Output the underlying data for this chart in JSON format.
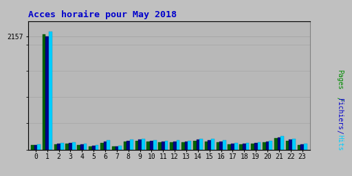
{
  "title": "Acces horaire pour May 2018",
  "hours": [
    0,
    1,
    2,
    3,
    4,
    5,
    6,
    7,
    8,
    9,
    10,
    11,
    12,
    13,
    14,
    15,
    16,
    17,
    18,
    19,
    20,
    21,
    22,
    23
  ],
  "pages": [
    80,
    2200,
    100,
    110,
    88,
    55,
    130,
    55,
    155,
    165,
    148,
    138,
    140,
    142,
    165,
    158,
    142,
    95,
    95,
    115,
    135,
    215,
    168,
    85
  ],
  "fichiers": [
    90,
    2157,
    112,
    122,
    100,
    68,
    155,
    65,
    168,
    185,
    160,
    150,
    155,
    155,
    188,
    178,
    158,
    108,
    108,
    128,
    148,
    235,
    188,
    98
  ],
  "hits": [
    105,
    2245,
    125,
    135,
    115,
    82,
    178,
    78,
    188,
    208,
    178,
    168,
    172,
    168,
    208,
    198,
    175,
    122,
    122,
    142,
    168,
    258,
    208,
    112
  ],
  "color_pages": "#006400",
  "color_fichiers": "#00008B",
  "color_hits": "#00CFFF",
  "bg_fig": "#C0C0C0",
  "bg_plot": "#B8B8B8",
  "title_color": "#0000CC",
  "ylim": [
    0,
    2450
  ],
  "ytick_val": 2157,
  "bar_width": 0.28,
  "figsize": [
    5.12,
    2.56
  ],
  "dpi": 100
}
